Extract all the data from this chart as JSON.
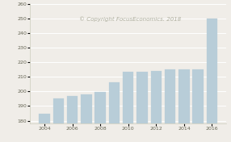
{
  "years": [
    2004,
    2005,
    2006,
    2007,
    2008,
    2009,
    2010,
    2011,
    2012,
    2013,
    2014,
    2015,
    2016
  ],
  "values": [
    184.5,
    195,
    197,
    198,
    199.5,
    206.5,
    213.5,
    213.5,
    214,
    215,
    215,
    215,
    250
  ],
  "bar_color": "#b8cdd8",
  "bar_edge_color": "#b8cdd8",
  "ylim": [
    178,
    260
  ],
  "yticks": [
    180,
    190,
    200,
    210,
    220,
    230,
    240,
    250,
    260
  ],
  "xticks": [
    2004,
    2006,
    2008,
    2010,
    2012,
    2014,
    2016
  ],
  "background_color": "#f0ede8",
  "grid_color": "#ffffff",
  "watermark": "© Copyright FocusEconomics. 2018",
  "watermark_color": "#b0b0a0",
  "watermark_fontsize": 5.0
}
